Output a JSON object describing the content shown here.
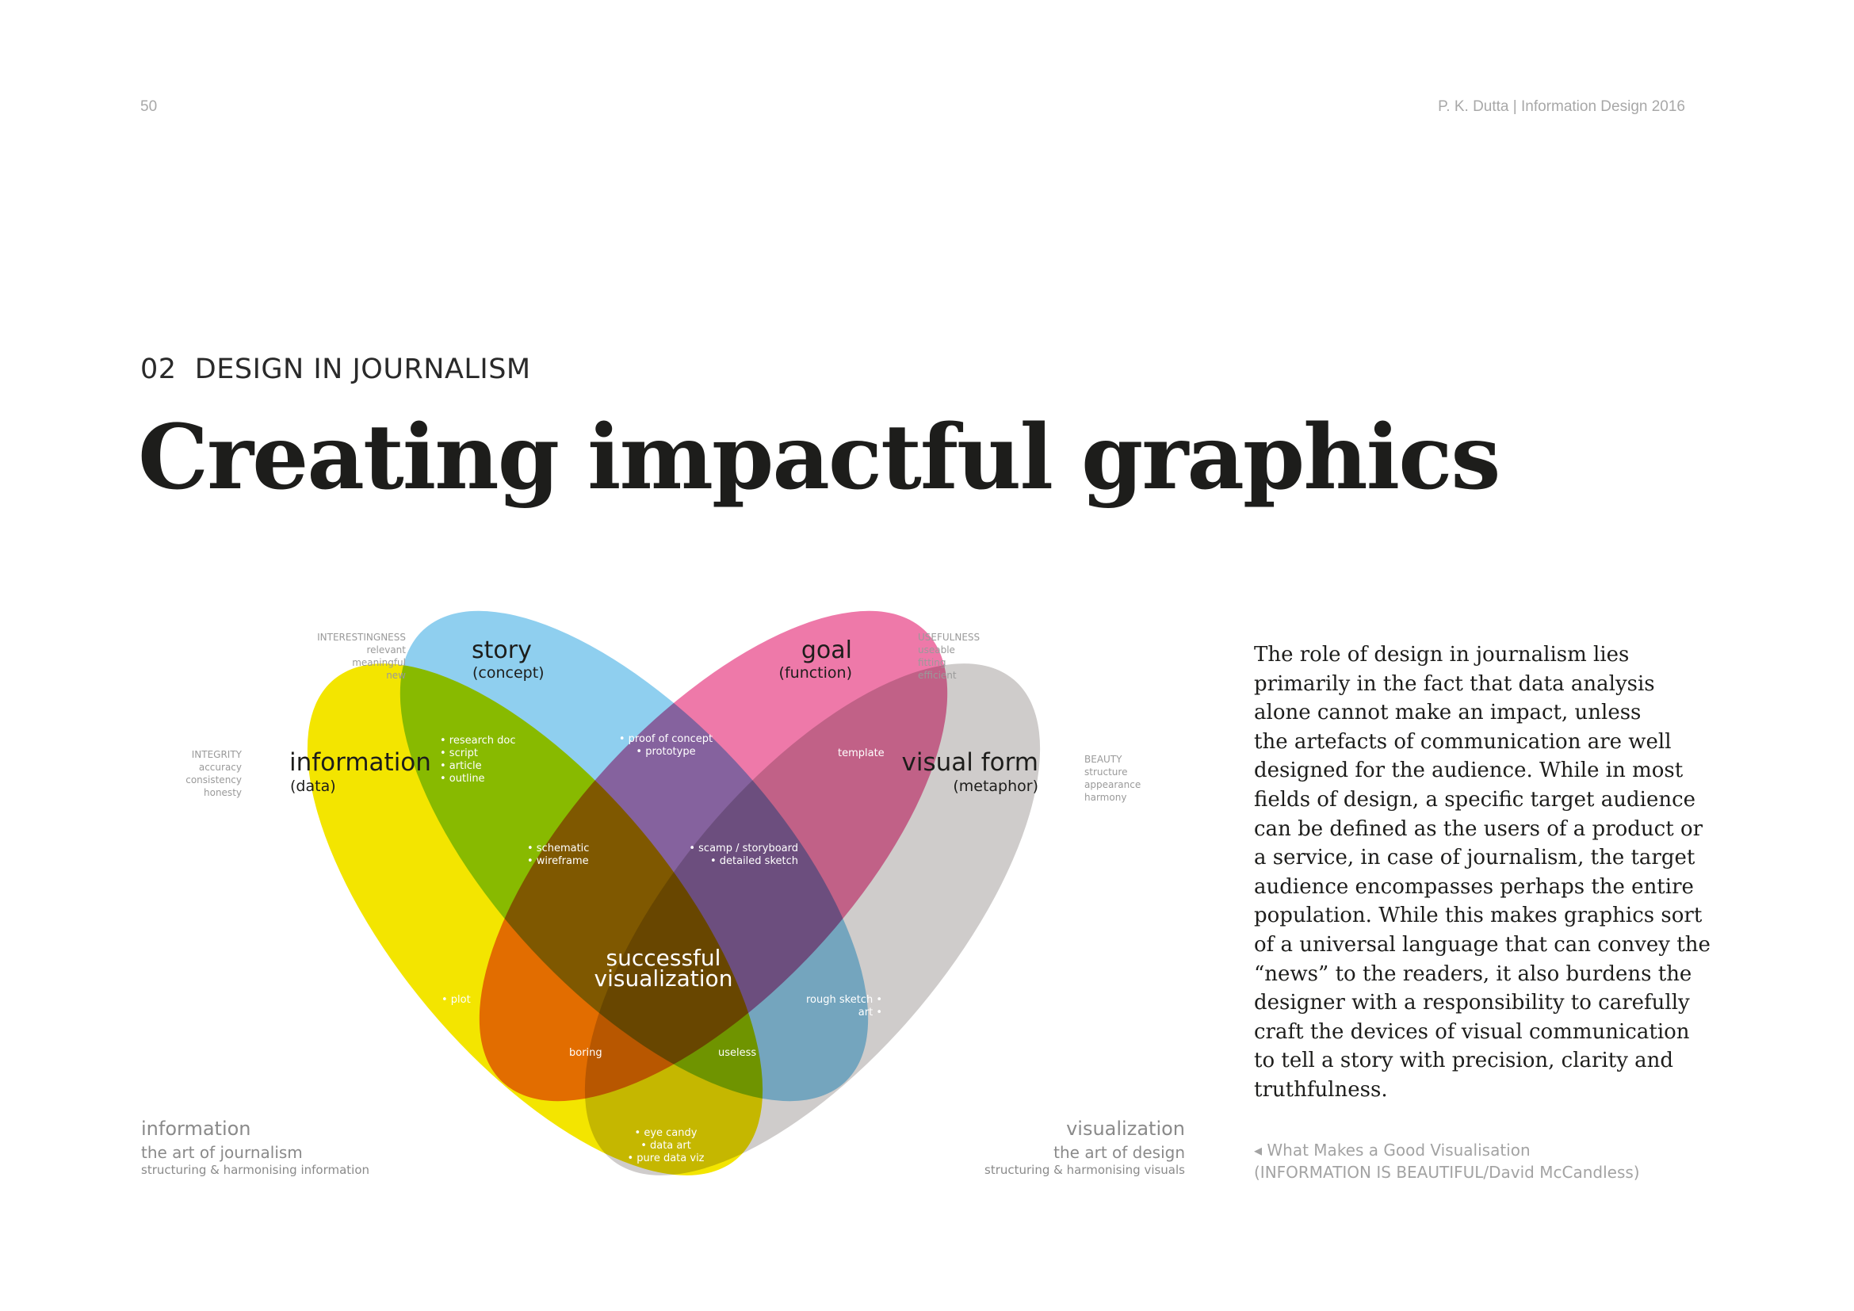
{
  "header": {
    "page_number": "50",
    "running_head": "P. K. Dutta | Information Design 2016"
  },
  "section": {
    "label": "02  DESIGN IN JOURNALISM",
    "title": "Creating impactful graphics"
  },
  "body_lines": [
    "The role of design in journalism lies",
    "primarily in the fact that data analysis",
    "alone cannot make an impact, unless",
    "the artefacts of communication are well",
    "designed for the audience. While in most",
    "fields of design, a specific target audience",
    "can be defined as the users of a product or",
    "a service, in case of journalism, the target",
    "audience encompasses perhaps the entire",
    "population. While this makes graphics sort",
    "of a universal language that can convey the",
    "“news” to the readers, it also burdens the",
    "designer with a responsibility to carefully",
    "craft the devices of visual communication",
    "to tell a story with precision, clarity and",
    "truthfulness."
  ],
  "caption": {
    "line1": "◂ What Makes a Good Visualisation",
    "line2": "(INFORMATION IS BEAUTIFUL/David McCandless)"
  },
  "venn": {
    "colors": {
      "information": "#f3e500",
      "story": "#8fcfef",
      "goal": "#ee79a9",
      "visual_form": "#cfcccb"
    },
    "story": {
      "title": "story",
      "sub": "(concept)"
    },
    "goal": {
      "title": "goal",
      "sub": "(function)"
    },
    "information": {
      "title": "information",
      "sub": "(data)"
    },
    "visual_form": {
      "title": "visual form",
      "sub": "(metaphor)"
    },
    "side_notes": {
      "interestingness": [
        "INTERESTINGNESS",
        "relevant",
        "meaningful",
        "new"
      ],
      "usefulness": [
        "USEFULNESS",
        "useable",
        "fitting",
        "efficient"
      ],
      "integrity": [
        "INTEGRITY",
        "accuracy",
        "consistency",
        "honesty"
      ],
      "beauty": [
        "BEAUTY",
        "structure",
        "appearance",
        "harmony"
      ]
    },
    "regions": {
      "info_story": [
        "• research doc",
        "• script",
        "• article",
        "• outline"
      ],
      "story_goal": [
        "• proof of concept",
        "• prototype"
      ],
      "goal_visual": "template",
      "info_story_goal": [
        "• schematic",
        "• wireframe"
      ],
      "story_goal_visual": [
        "• scamp / storyboard",
        "• detailed sketch"
      ],
      "center": [
        "successful",
        "visualization"
      ],
      "info_only_plot": "• plot",
      "visual_rough": [
        "rough sketch •",
        "art •"
      ],
      "boring": "boring",
      "useless": "useless",
      "bottom": [
        "• eye candy",
        "• data art",
        "• pure data viz"
      ]
    },
    "footer_left": {
      "title": "information",
      "sub": "the art of journalism",
      "small": "structuring & harmonising information"
    },
    "footer_right": {
      "title": "visualization",
      "sub": "the art of design",
      "small": "structuring & harmonising visuals"
    }
  }
}
